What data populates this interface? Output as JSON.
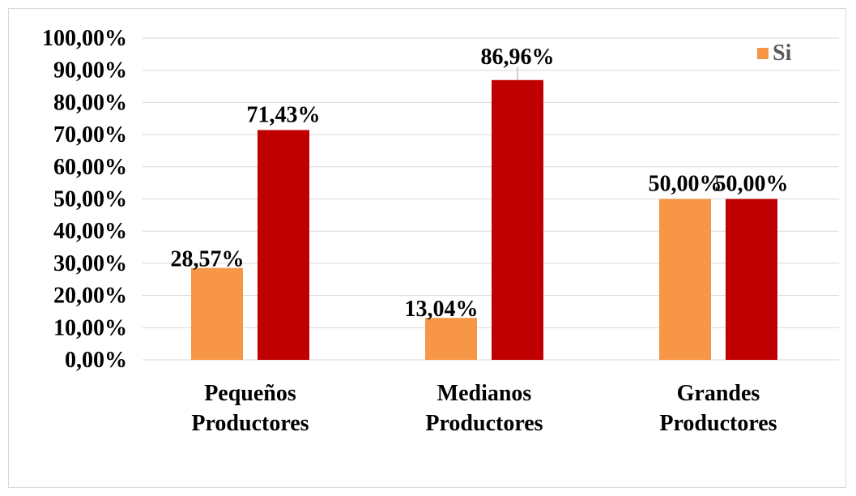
{
  "chart_data": {
    "type": "bar",
    "categories": [
      [
        "Pequeños",
        "Productores"
      ],
      [
        "Medianos",
        "Productores"
      ],
      [
        "Grandes",
        "Productores"
      ]
    ],
    "series": [
      {
        "name": "Si",
        "values": [
          28.57,
          13.04,
          50.0
        ],
        "labels": [
          "28,57%",
          "13,04%",
          "50,00%"
        ],
        "color": "#F79646"
      },
      {
        "values": [
          71.43,
          86.96,
          50.0
        ],
        "labels": [
          "71,43%",
          "86,96%",
          "50,00%"
        ],
        "color": "#C00000"
      }
    ],
    "ylim": [
      0,
      100
    ],
    "y_ticks": [
      "0,00%",
      "10,00%",
      "20,00%",
      "30,00%",
      "40,00%",
      "50,00%",
      "60,00%",
      "70,00%",
      "80,00%",
      "90,00%",
      "100,00%"
    ],
    "grid": true,
    "legend_position": "top-right",
    "legend": [
      {
        "label": "Si",
        "color": "#F79646"
      }
    ],
    "gridline_color": "#d9d9d9"
  }
}
